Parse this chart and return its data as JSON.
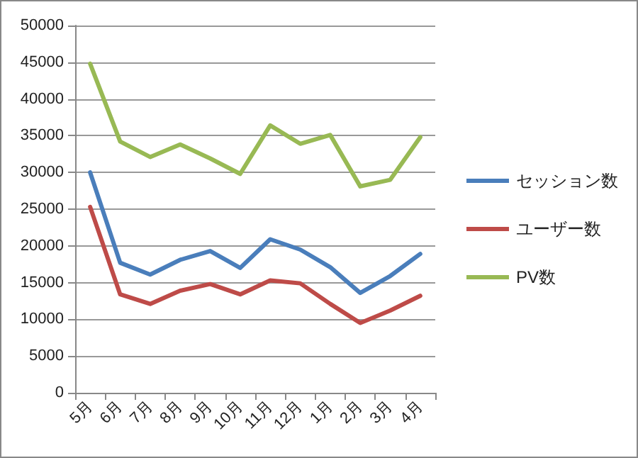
{
  "chart_data": {
    "type": "line",
    "categories": [
      "5月",
      "6月",
      "7月",
      "8月",
      "9月",
      "10月",
      "11月",
      "12月",
      "1月",
      "2月",
      "3月",
      "4月"
    ],
    "series": [
      {
        "name": "セッション数",
        "color": "#4a7ebb",
        "values": [
          30000,
          17700,
          16100,
          18100,
          19300,
          17000,
          20900,
          19500,
          17100,
          13600,
          15900,
          18900
        ]
      },
      {
        "name": "ユーザー数",
        "color": "#be4b48",
        "values": [
          25300,
          13400,
          12100,
          13900,
          14800,
          13400,
          15300,
          14900,
          12100,
          9500,
          11200,
          13200
        ]
      },
      {
        "name": "PV数",
        "color": "#98b954",
        "values": [
          44800,
          34200,
          32100,
          33800,
          31900,
          29800,
          36400,
          33900,
          35100,
          28100,
          29000,
          34800
        ]
      }
    ],
    "ylim": [
      0,
      50000
    ],
    "yticks": [
      0,
      5000,
      10000,
      15000,
      20000,
      25000,
      30000,
      35000,
      40000,
      45000,
      50000
    ],
    "grid": "y",
    "legend": "right",
    "marker": "none",
    "line_style": "solid"
  }
}
